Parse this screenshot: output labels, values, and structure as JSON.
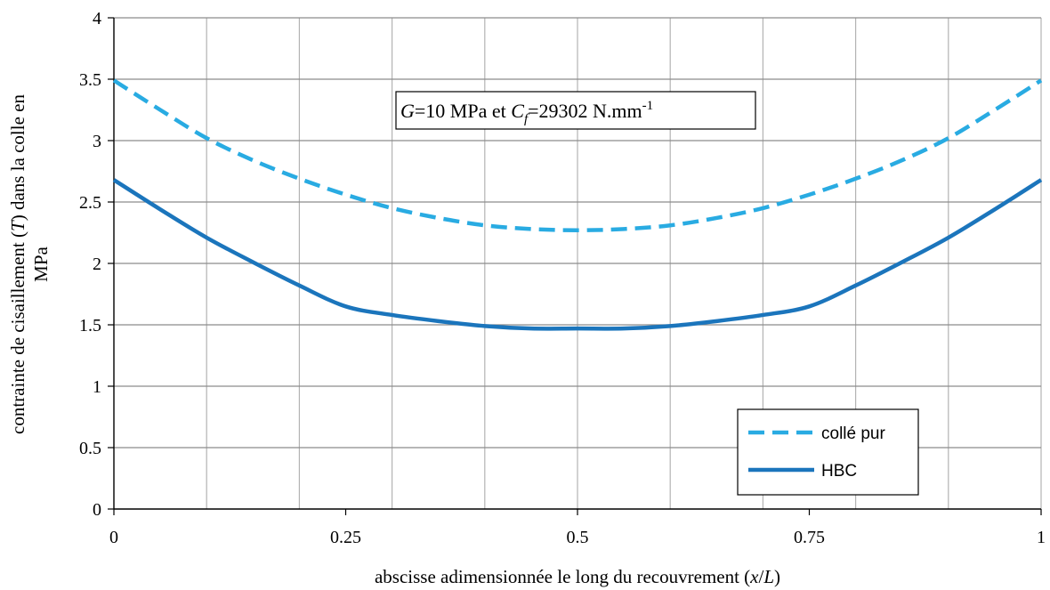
{
  "chart_data": {
    "type": "line",
    "title": "",
    "xlabel": {
      "main": "abscisse adimensionnée le long du recouvrement (",
      "var_x": "x",
      "slash": "/",
      "var_L": "L",
      "close": ")"
    },
    "ylabel": {
      "line1_main": "contrainte de cisaillement (",
      "line1_var": "T",
      "line1_rest": ") dans la colle en",
      "line2": "MPa"
    },
    "xlim": [
      0,
      1
    ],
    "ylim": [
      0,
      4
    ],
    "x_ticks": [
      "0",
      "0.25",
      "0.5",
      "0.75",
      "1"
    ],
    "y_ticks": [
      "0",
      "0.5",
      "1",
      "1.5",
      "2",
      "2.5",
      "3",
      "3.5",
      "4"
    ],
    "grid": true,
    "legend_position": "bottom-right",
    "annotation": {
      "var_G": "G",
      "part1": "=10 MPa et ",
      "var_C": "C",
      "sub_f": "f",
      "part2": "=29302 N.mm",
      "sup": "-1"
    },
    "series": [
      {
        "name": "collé pur",
        "color": "#29abe2",
        "dash": true,
        "x": [
          0,
          0.05,
          0.1,
          0.15,
          0.2,
          0.25,
          0.3,
          0.35,
          0.4,
          0.45,
          0.5,
          0.55,
          0.6,
          0.65,
          0.7,
          0.75,
          0.8,
          0.85,
          0.9,
          0.95,
          1
        ],
        "y": [
          3.49,
          3.25,
          3.02,
          2.84,
          2.69,
          2.56,
          2.45,
          2.37,
          2.31,
          2.28,
          2.27,
          2.28,
          2.31,
          2.37,
          2.45,
          2.56,
          2.69,
          2.84,
          3.02,
          3.25,
          3.49
        ]
      },
      {
        "name": "HBC",
        "color": "#1b75bc",
        "dash": false,
        "x": [
          0,
          0.05,
          0.1,
          0.15,
          0.2,
          0.25,
          0.3,
          0.35,
          0.4,
          0.45,
          0.5,
          0.55,
          0.6,
          0.65,
          0.7,
          0.75,
          0.8,
          0.85,
          0.9,
          0.95,
          1
        ],
        "y": [
          2.68,
          2.44,
          2.21,
          2.01,
          1.82,
          1.65,
          1.58,
          1.53,
          1.49,
          1.47,
          1.47,
          1.47,
          1.49,
          1.53,
          1.58,
          1.65,
          1.82,
          2.01,
          2.21,
          2.44,
          2.68
        ]
      }
    ]
  }
}
